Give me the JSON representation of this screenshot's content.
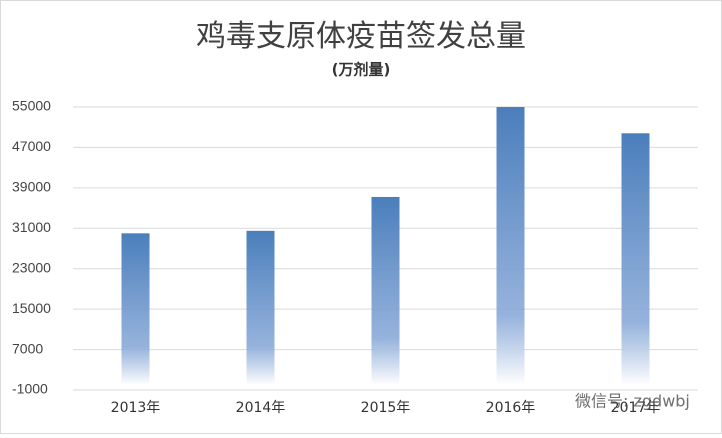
{
  "chart_data": {
    "type": "bar",
    "title": "鸡毒支原体疫苗签发总量",
    "subtitle": "(万剂量)",
    "categories": [
      "2013年",
      "2014年",
      "2015年",
      "2016年",
      "2017年"
    ],
    "values": [
      30000,
      30500,
      37200,
      55000,
      49800
    ],
    "color": "#4a7ebb",
    "ylim": [
      -1000,
      55000
    ],
    "yticks": [
      -1000,
      7000,
      15000,
      23000,
      31000,
      39000,
      47000,
      55000
    ],
    "grid": true,
    "watermark": "微信号: zgdwbj"
  }
}
